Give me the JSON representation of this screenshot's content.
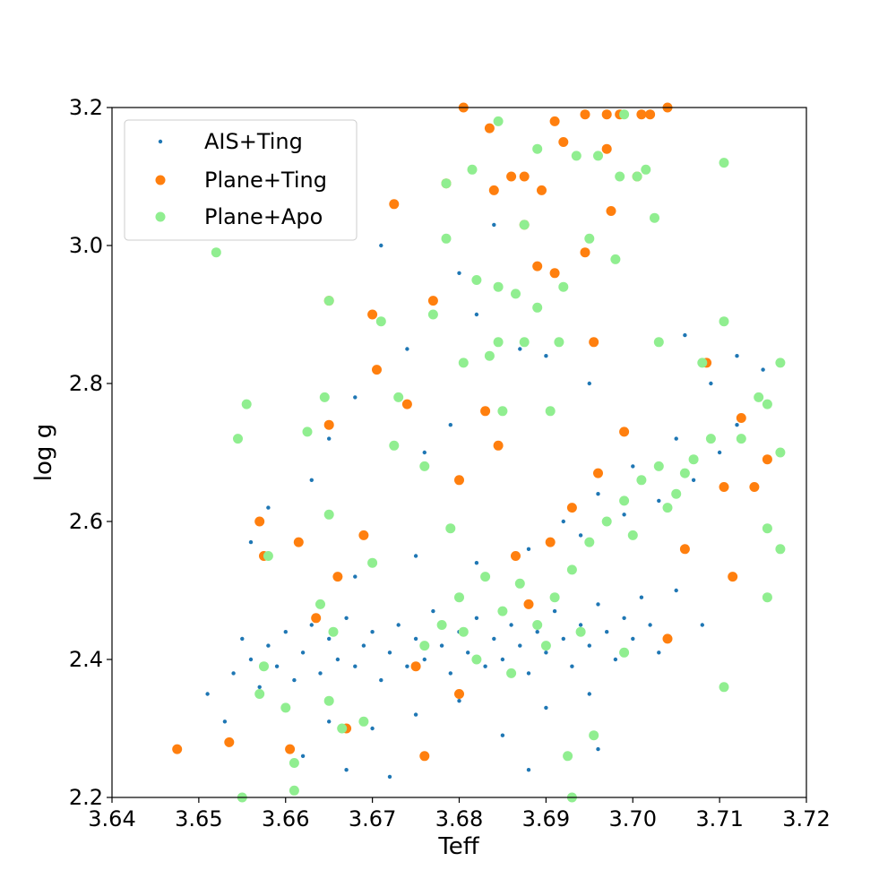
{
  "chart_data": {
    "type": "scatter",
    "title": "",
    "xlabel": "Teff",
    "ylabel": "log g",
    "xlim": [
      3.64,
      3.72
    ],
    "ylim": [
      2.2,
      3.2
    ],
    "xticks": [
      "3.64",
      "3.65",
      "3.66",
      "3.67",
      "3.68",
      "3.69",
      "3.70",
      "3.71",
      "3.72"
    ],
    "yticks": [
      "2.2",
      "2.4",
      "2.6",
      "2.8",
      "3.0",
      "3.2"
    ],
    "grid": false,
    "legend_position": "top-left",
    "series": [
      {
        "name": "AIS+Ting",
        "color": "#1f77b4",
        "marker": "small-dot",
        "note_density": "dense cloud concentrated at Teff 3.66-3.70, log g 2.35-2.50, spreading to higher log g at higher Teff",
        "points": [
          [
            3.651,
            2.35
          ],
          [
            3.653,
            2.31
          ],
          [
            3.654,
            2.38
          ],
          [
            3.655,
            2.43
          ],
          [
            3.656,
            2.4
          ],
          [
            3.657,
            2.36
          ],
          [
            3.658,
            2.42
          ],
          [
            3.659,
            2.39
          ],
          [
            3.66,
            2.44
          ],
          [
            3.661,
            2.37
          ],
          [
            3.662,
            2.41
          ],
          [
            3.663,
            2.45
          ],
          [
            3.664,
            2.38
          ],
          [
            3.665,
            2.43
          ],
          [
            3.666,
            2.4
          ],
          [
            3.667,
            2.46
          ],
          [
            3.668,
            2.39
          ],
          [
            3.669,
            2.42
          ],
          [
            3.67,
            2.44
          ],
          [
            3.671,
            2.37
          ],
          [
            3.672,
            2.41
          ],
          [
            3.673,
            2.45
          ],
          [
            3.674,
            2.39
          ],
          [
            3.675,
            2.43
          ],
          [
            3.676,
            2.4
          ],
          [
            3.677,
            2.47
          ],
          [
            3.678,
            2.42
          ],
          [
            3.679,
            2.38
          ],
          [
            3.68,
            2.44
          ],
          [
            3.681,
            2.41
          ],
          [
            3.682,
            2.46
          ],
          [
            3.683,
            2.39
          ],
          [
            3.684,
            2.43
          ],
          [
            3.685,
            2.4
          ],
          [
            3.686,
            2.45
          ],
          [
            3.687,
            2.42
          ],
          [
            3.688,
            2.38
          ],
          [
            3.689,
            2.44
          ],
          [
            3.69,
            2.41
          ],
          [
            3.691,
            2.47
          ],
          [
            3.692,
            2.43
          ],
          [
            3.693,
            2.39
          ],
          [
            3.694,
            2.45
          ],
          [
            3.695,
            2.42
          ],
          [
            3.696,
            2.48
          ],
          [
            3.697,
            2.44
          ],
          [
            3.698,
            2.4
          ],
          [
            3.699,
            2.46
          ],
          [
            3.7,
            2.43
          ],
          [
            3.701,
            2.49
          ],
          [
            3.702,
            2.45
          ],
          [
            3.703,
            2.41
          ],
          [
            3.66,
            2.33
          ],
          [
            3.665,
            2.31
          ],
          [
            3.67,
            2.3
          ],
          [
            3.675,
            2.32
          ],
          [
            3.68,
            2.34
          ],
          [
            3.685,
            2.29
          ],
          [
            3.69,
            2.33
          ],
          [
            3.695,
            2.35
          ],
          [
            3.668,
            2.52
          ],
          [
            3.675,
            2.55
          ],
          [
            3.682,
            2.54
          ],
          [
            3.688,
            2.56
          ],
          [
            3.694,
            2.58
          ],
          [
            3.699,
            2.61
          ],
          [
            3.703,
            2.63
          ],
          [
            3.707,
            2.66
          ],
          [
            3.71,
            2.7
          ],
          [
            3.712,
            2.74
          ],
          [
            3.715,
            2.82
          ],
          [
            3.705,
            2.72
          ],
          [
            3.7,
            2.68
          ],
          [
            3.696,
            2.64
          ],
          [
            3.692,
            2.6
          ],
          [
            3.665,
            2.72
          ],
          [
            3.668,
            2.78
          ],
          [
            3.671,
            3.0
          ],
          [
            3.674,
            2.85
          ],
          [
            3.68,
            2.96
          ],
          [
            3.682,
            2.9
          ],
          [
            3.684,
            3.03
          ],
          [
            3.687,
            2.85
          ],
          [
            3.69,
            2.84
          ],
          [
            3.695,
            2.8
          ],
          [
            3.656,
            2.57
          ],
          [
            3.658,
            2.62
          ],
          [
            3.663,
            2.66
          ],
          [
            3.676,
            2.7
          ],
          [
            3.679,
            2.74
          ],
          [
            3.662,
            2.26
          ],
          [
            3.667,
            2.24
          ],
          [
            3.672,
            2.23
          ],
          [
            3.688,
            2.24
          ],
          [
            3.696,
            2.27
          ],
          [
            3.706,
            2.87
          ],
          [
            3.712,
            2.84
          ],
          [
            3.709,
            2.8
          ],
          [
            3.705,
            2.5
          ],
          [
            3.708,
            2.45
          ]
        ]
      },
      {
        "name": "Plane+Ting",
        "color": "#ff7f0e",
        "marker": "circle",
        "points": [
          [
            3.6475,
            2.27
          ],
          [
            3.6535,
            2.28
          ],
          [
            3.657,
            2.6
          ],
          [
            3.6575,
            2.55
          ],
          [
            3.6605,
            2.27
          ],
          [
            3.6615,
            2.57
          ],
          [
            3.6635,
            2.46
          ],
          [
            3.665,
            2.92
          ],
          [
            3.665,
            2.74
          ],
          [
            3.666,
            2.52
          ],
          [
            3.667,
            2.3
          ],
          [
            3.669,
            2.58
          ],
          [
            3.67,
            2.9
          ],
          [
            3.6705,
            2.82
          ],
          [
            3.6725,
            3.06
          ],
          [
            3.674,
            2.77
          ],
          [
            3.675,
            2.39
          ],
          [
            3.676,
            2.26
          ],
          [
            3.677,
            2.92
          ],
          [
            3.6785,
            3.09
          ],
          [
            3.68,
            2.66
          ],
          [
            3.68,
            2.35
          ],
          [
            3.6805,
            3.2
          ],
          [
            3.683,
            2.76
          ],
          [
            3.6835,
            3.17
          ],
          [
            3.684,
            3.08
          ],
          [
            3.6845,
            2.71
          ],
          [
            3.686,
            3.1
          ],
          [
            3.6875,
            3.1
          ],
          [
            3.6875,
            3.03
          ],
          [
            3.689,
            2.97
          ],
          [
            3.6895,
            3.08
          ],
          [
            3.691,
            3.18
          ],
          [
            3.691,
            2.96
          ],
          [
            3.692,
            3.15
          ],
          [
            3.6945,
            3.19
          ],
          [
            3.6945,
            2.99
          ],
          [
            3.697,
            3.19
          ],
          [
            3.697,
            3.14
          ],
          [
            3.6975,
            3.05
          ],
          [
            3.6985,
            3.19
          ],
          [
            3.701,
            3.19
          ],
          [
            3.702,
            3.19
          ],
          [
            3.704,
            3.2
          ],
          [
            3.7005,
            3.1
          ],
          [
            3.6955,
            2.86
          ],
          [
            3.696,
            2.67
          ],
          [
            3.699,
            2.73
          ],
          [
            3.704,
            2.43
          ],
          [
            3.706,
            2.56
          ],
          [
            3.7085,
            2.83
          ],
          [
            3.7105,
            2.65
          ],
          [
            3.7115,
            2.52
          ],
          [
            3.7125,
            2.75
          ],
          [
            3.714,
            2.65
          ],
          [
            3.7155,
            2.69
          ],
          [
            3.6865,
            2.55
          ],
          [
            3.688,
            2.48
          ],
          [
            3.6905,
            2.57
          ],
          [
            3.693,
            2.62
          ]
        ]
      },
      {
        "name": "Plane+Apo",
        "color": "#90ee90",
        "marker": "circle",
        "points": [
          [
            3.652,
            2.99
          ],
          [
            3.6545,
            2.72
          ],
          [
            3.6555,
            2.77
          ],
          [
            3.658,
            2.55
          ],
          [
            3.657,
            2.35
          ],
          [
            3.6575,
            2.39
          ],
          [
            3.66,
            2.33
          ],
          [
            3.661,
            2.25
          ],
          [
            3.6625,
            2.73
          ],
          [
            3.664,
            2.48
          ],
          [
            3.6645,
            2.78
          ],
          [
            3.665,
            2.92
          ],
          [
            3.665,
            2.61
          ],
          [
            3.6655,
            2.44
          ],
          [
            3.6665,
            2.3
          ],
          [
            3.669,
            2.31
          ],
          [
            3.67,
            2.54
          ],
          [
            3.671,
            2.89
          ],
          [
            3.6725,
            2.71
          ],
          [
            3.673,
            2.78
          ],
          [
            3.676,
            2.68
          ],
          [
            3.677,
            2.9
          ],
          [
            3.6785,
            3.09
          ],
          [
            3.6785,
            3.01
          ],
          [
            3.679,
            2.59
          ],
          [
            3.68,
            2.49
          ],
          [
            3.6805,
            2.83
          ],
          [
            3.6815,
            3.11
          ],
          [
            3.682,
            2.95
          ],
          [
            3.6835,
            2.84
          ],
          [
            3.6845,
            2.94
          ],
          [
            3.6845,
            2.86
          ],
          [
            3.6845,
            3.18
          ],
          [
            3.685,
            2.76
          ],
          [
            3.6865,
            2.93
          ],
          [
            3.6875,
            3.03
          ],
          [
            3.6875,
            2.86
          ],
          [
            3.689,
            3.14
          ],
          [
            3.689,
            2.91
          ],
          [
            3.6905,
            2.76
          ],
          [
            3.6915,
            2.86
          ],
          [
            3.692,
            2.94
          ],
          [
            3.6935,
            3.13
          ],
          [
            3.695,
            3.01
          ],
          [
            3.696,
            3.13
          ],
          [
            3.698,
            2.98
          ],
          [
            3.6985,
            3.1
          ],
          [
            3.699,
            3.19
          ],
          [
            3.7005,
            3.1
          ],
          [
            3.7015,
            3.11
          ],
          [
            3.7025,
            3.04
          ],
          [
            3.703,
            2.86
          ],
          [
            3.708,
            2.83
          ],
          [
            3.7105,
            3.12
          ],
          [
            3.7105,
            2.89
          ],
          [
            3.7125,
            2.72
          ],
          [
            3.7145,
            2.78
          ],
          [
            3.7155,
            2.77
          ],
          [
            3.717,
            2.83
          ],
          [
            3.717,
            2.7
          ],
          [
            3.7155,
            2.59
          ],
          [
            3.717,
            2.56
          ],
          [
            3.7155,
            2.49
          ],
          [
            3.7105,
            2.36
          ],
          [
            3.6955,
            2.29
          ],
          [
            3.693,
            2.2
          ],
          [
            3.6925,
            2.26
          ],
          [
            3.655,
            2.2
          ],
          [
            3.661,
            2.21
          ],
          [
            3.665,
            2.34
          ],
          [
            3.6805,
            2.44
          ],
          [
            3.683,
            2.52
          ],
          [
            3.685,
            2.47
          ],
          [
            3.687,
            2.51
          ],
          [
            3.689,
            2.45
          ],
          [
            3.691,
            2.49
          ],
          [
            3.693,
            2.53
          ],
          [
            3.695,
            2.57
          ],
          [
            3.697,
            2.6
          ],
          [
            3.699,
            2.63
          ],
          [
            3.701,
            2.66
          ],
          [
            3.703,
            2.68
          ],
          [
            3.705,
            2.64
          ],
          [
            3.707,
            2.69
          ],
          [
            3.709,
            2.72
          ],
          [
            3.676,
            2.42
          ],
          [
            3.678,
            2.45
          ],
          [
            3.682,
            2.4
          ],
          [
            3.686,
            2.38
          ],
          [
            3.69,
            2.42
          ],
          [
            3.694,
            2.44
          ],
          [
            3.699,
            2.41
          ],
          [
            3.7,
            2.58
          ],
          [
            3.704,
            2.62
          ],
          [
            3.706,
            2.67
          ]
        ]
      }
    ]
  }
}
